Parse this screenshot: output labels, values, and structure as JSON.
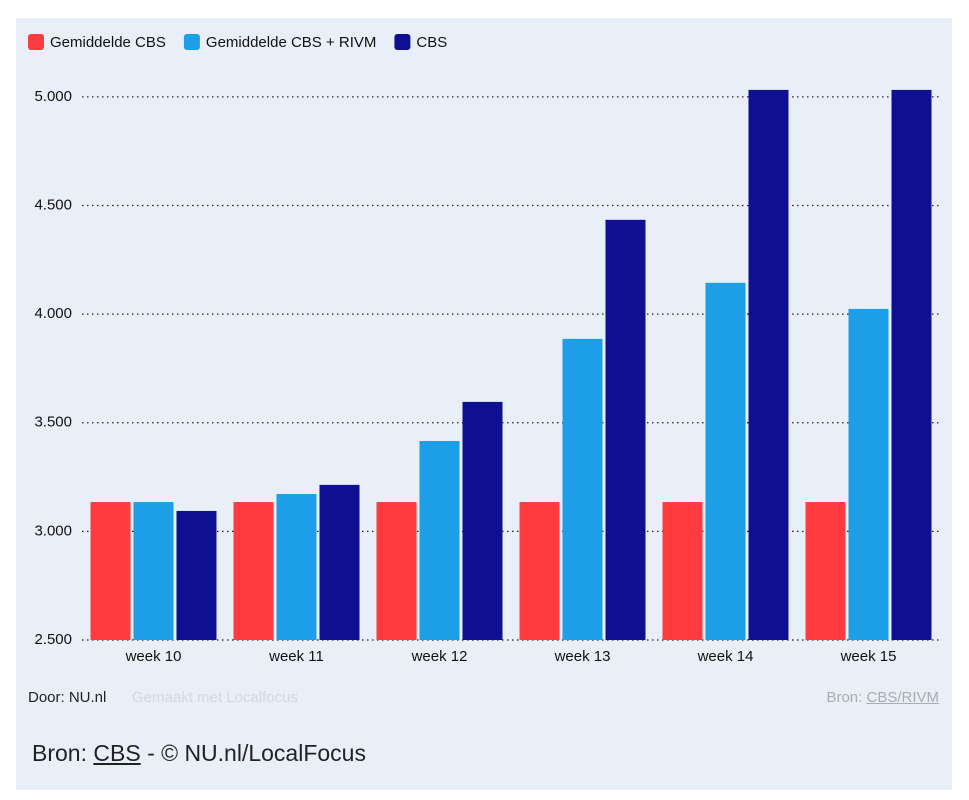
{
  "chart_data": {
    "type": "bar",
    "categories": [
      "week 10",
      "week 11",
      "week 12",
      "week 13",
      "week 14",
      "week 15"
    ],
    "series": [
      {
        "name": "Gemiddelde CBS",
        "color": "#ff3b3f",
        "values": [
          3135,
          3135,
          3135,
          3135,
          3135,
          3135
        ]
      },
      {
        "name": "Gemiddelde CBS + RIVM",
        "color": "#1c9fe6",
        "values": [
          3135,
          3172,
          3416,
          3886,
          4144,
          4024
        ]
      },
      {
        "name": "CBS",
        "color": "#0f0f91",
        "values": [
          3094,
          3214,
          3596,
          4434,
          5032,
          5032
        ]
      }
    ],
    "ylim": [
      2500,
      5050
    ],
    "yticks": [
      {
        "value": 2500,
        "label": "2.500"
      },
      {
        "value": 3000,
        "label": "3.000"
      },
      {
        "value": 3500,
        "label": "3.500"
      },
      {
        "value": 4000,
        "label": "4.000"
      },
      {
        "value": 4500,
        "label": "4.500"
      },
      {
        "value": 5000,
        "label": "5.000"
      }
    ],
    "grid": true,
    "legend": "top"
  },
  "footer": {
    "author": "Door: NU.nl",
    "made_with": "Gemaakt met Localfocus",
    "source_label": "Bron:",
    "source_link": "CBS/RIVM"
  },
  "caption": {
    "prefix": "Bron:",
    "link": "CBS",
    "suffix": "- © NU.nl/LocalFocus"
  }
}
